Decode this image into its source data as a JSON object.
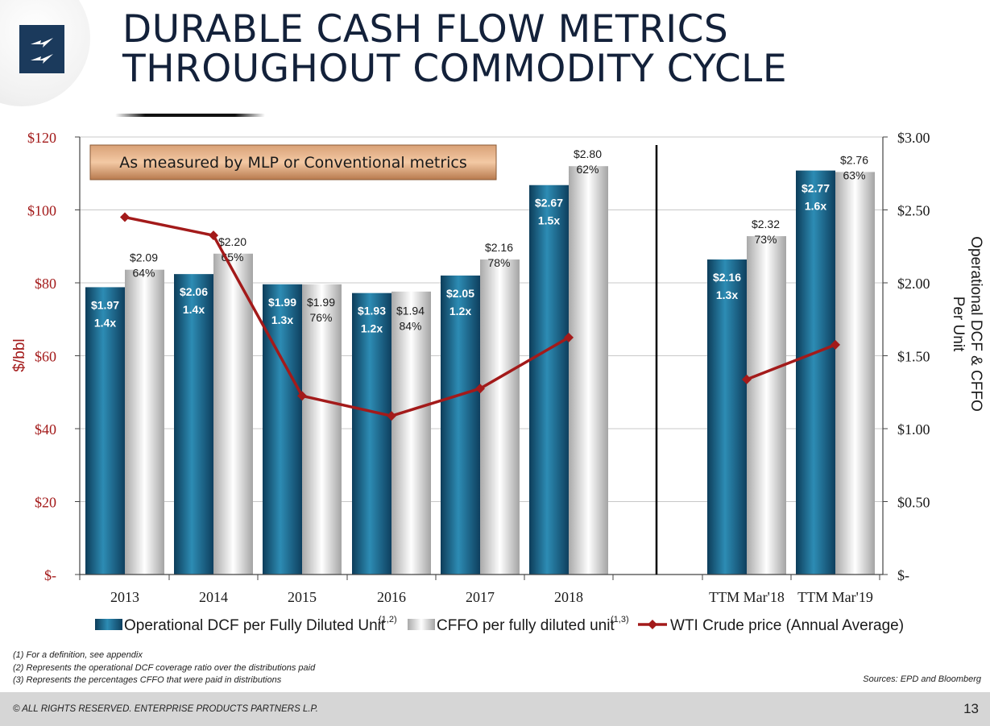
{
  "slide": {
    "title_lines": [
      "DURABLE CASH FLOW METRICS",
      "THROUGHOUT COMMODITY CYCLE"
    ],
    "banner": "As measured by MLP or Conventional metrics",
    "footnotes": [
      "(1)  For a definition, see appendix",
      "(2)  Represents the operational DCF coverage ratio over the distributions paid",
      "(3)  Represents the percentages CFFO that were paid in distributions"
    ],
    "sources": "Sources:  EPD and Bloomberg",
    "copyright": "© ALL RIGHTS RESERVED. ENTERPRISE PRODUCTS PARTNERS L.P.",
    "page_number": "13",
    "logo_icon": "lightning-bolt-icon"
  },
  "chart_data": {
    "type": "bar",
    "categories": [
      "2013",
      "2014",
      "2015",
      "2016",
      "2017",
      "2018",
      "TTM Mar'18",
      "TTM Mar'19"
    ],
    "left_axis": {
      "label": "$/bbl",
      "ylim": [
        0,
        120
      ],
      "ticks": [
        0,
        20,
        40,
        60,
        80,
        100,
        120
      ],
      "tick_labels": [
        "$-",
        "$20",
        "$40",
        "$60",
        "$80",
        "$100",
        "$120"
      ]
    },
    "right_axis": {
      "label_lines": [
        "Operational DCF & CFFO",
        "Per Unit"
      ],
      "ylim": [
        0,
        3.0
      ],
      "ticks": [
        0,
        0.5,
        1.0,
        1.5,
        2.0,
        2.5,
        3.0
      ],
      "tick_labels": [
        "$-",
        "$0.50",
        "$1.00",
        "$1.50",
        "$2.00",
        "$2.50",
        "$3.00"
      ]
    },
    "grid": true,
    "legend_position": "bottom",
    "series": [
      {
        "name": "Operational DCF per Fully Diluted Unit",
        "superscript": "(1,2)",
        "axis": "right",
        "color": "#1f6e95",
        "values": [
          1.97,
          2.06,
          1.99,
          1.93,
          2.05,
          2.67,
          2.16,
          2.77
        ],
        "value_labels": [
          "$1.97",
          "$2.06",
          "$1.99",
          "$1.93",
          "$2.05",
          "$2.67",
          "$2.16",
          "$2.77"
        ],
        "ratio_labels": [
          "1.4x",
          "1.4x",
          "1.3x",
          "1.2x",
          "1.2x",
          "1.5x",
          "1.3x",
          "1.6x"
        ]
      },
      {
        "name": "CFFO per fully diluted unit",
        "superscript": "(1,3)",
        "axis": "right",
        "color": "#d9d9d9",
        "values": [
          2.09,
          2.2,
          1.99,
          1.94,
          2.16,
          2.8,
          2.32,
          2.76
        ],
        "value_labels": [
          "$2.09",
          "$2.20",
          "$1.99",
          "$1.94",
          "$2.16",
          "$2.80",
          "$2.32",
          "$2.76"
        ],
        "ratio_labels": [
          "64%",
          "65%",
          "76%",
          "84%",
          "78%",
          "62%",
          "73%",
          "63%"
        ]
      },
      {
        "name": "WTI Crude price (Annual Average)",
        "axis": "left",
        "type": "line",
        "color": "#a31a1a",
        "values": [
          98,
          93,
          49,
          43.5,
          51,
          65,
          53.5,
          63
        ]
      }
    ]
  }
}
